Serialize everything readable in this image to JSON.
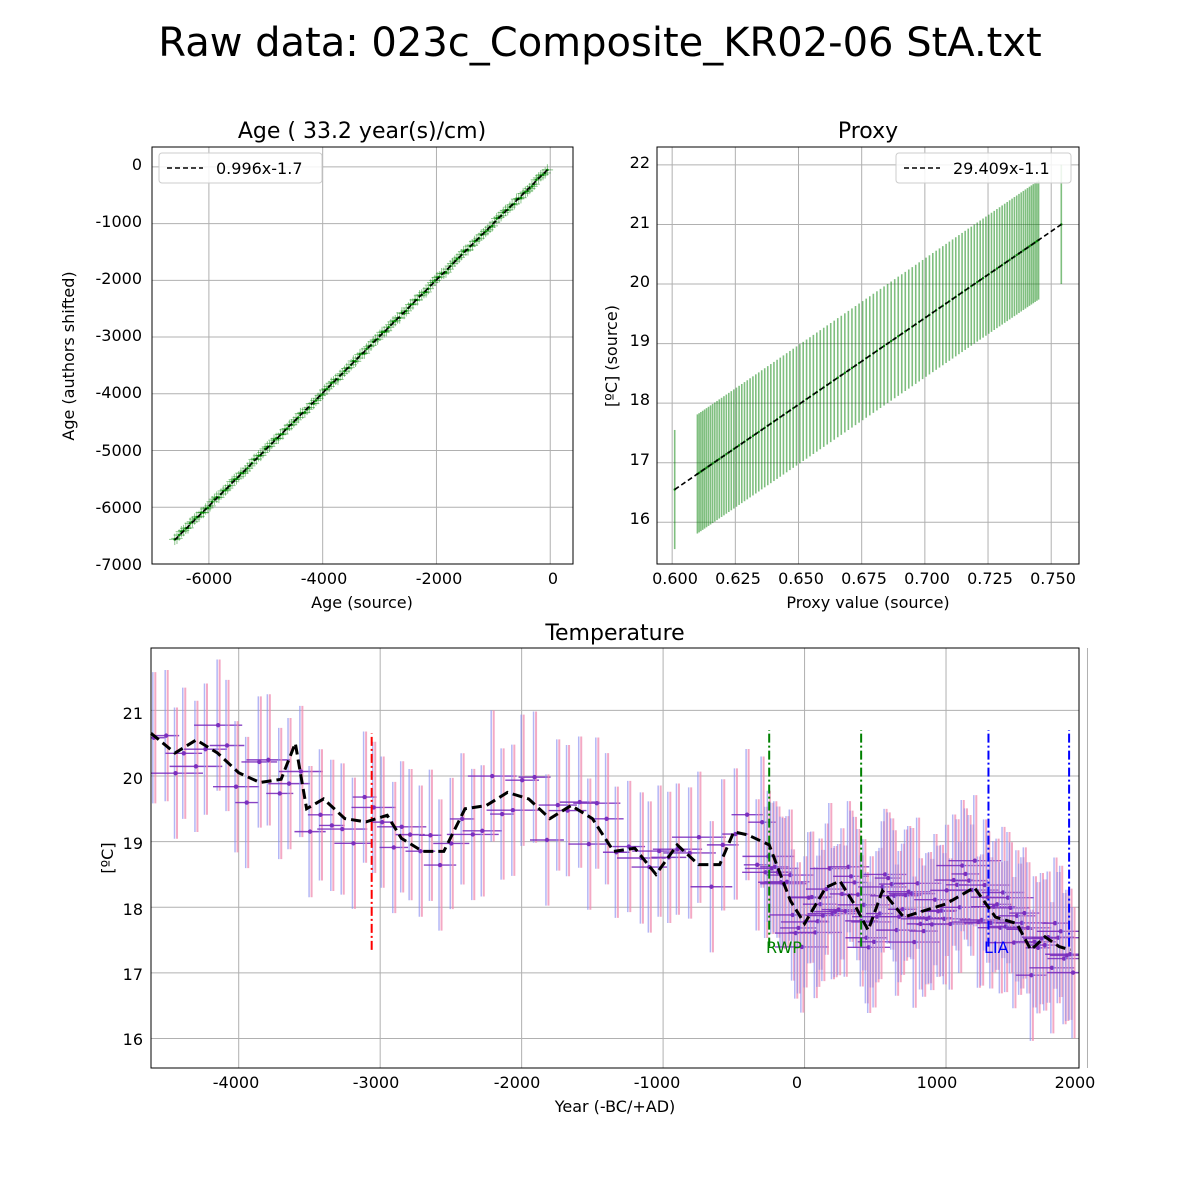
{
  "figure_title": "Raw data: 023c_Composite_KR02-06 StA.txt",
  "colors": {
    "green": "#008000",
    "grid": "#b0b0b0",
    "purple": "#7b2fbe",
    "pink": "#f08cb0",
    "blue_err": "#8a8ff0",
    "red": "#ff0000",
    "rwp": "#008000",
    "lia": "#0000ff",
    "fit": "#000000"
  },
  "chart_data": [
    {
      "type": "scatter",
      "title": "Age ( 33.2 year(s)/cm)",
      "xlabel": "Age (source)",
      "ylabel": "Age (authors shifted)",
      "xlim": [
        -7000,
        400
      ],
      "ylim": [
        -7000,
        350
      ],
      "xticks": [
        "-6000",
        "-4000",
        "-2000",
        "0"
      ],
      "yticks": [
        "0",
        "-1000",
        "-2000",
        "-3000",
        "-4000",
        "-5000",
        "-6000",
        "-7000"
      ],
      "legend": {
        "label": "0.996x-1.7",
        "placement": "top-left"
      },
      "fit": {
        "slope": 0.996,
        "intercept": -1.7
      },
      "x_range": [
        -6600,
        -50
      ],
      "n_points": 170,
      "error_bar": 100,
      "grid": true
    },
    {
      "type": "scatter",
      "title": "Proxy",
      "xlabel": "Proxy value (source)",
      "ylabel": "[ºC] (source)",
      "xlim": [
        0.594,
        0.761
      ],
      "ylim": [
        15.3,
        22.3
      ],
      "xticks": [
        "0.600",
        "0.625",
        "0.650",
        "0.675",
        "0.700",
        "0.725",
        "0.750"
      ],
      "yticks": [
        "16",
        "17",
        "18",
        "19",
        "20",
        "21",
        "22"
      ],
      "legend": {
        "label": "29.409x-1.1",
        "placement": "top-right"
      },
      "fit": {
        "slope": 29.409,
        "intercept": -1.1
      },
      "proxy_range": [
        0.601,
        0.754
      ],
      "n_points": 120,
      "error_bar": 1.0,
      "grid": true
    },
    {
      "type": "line",
      "title": "Temperature",
      "xlabel": "Year (-BC/+AD)",
      "ylabel": "[ºC]",
      "xlim": [
        -4620,
        1940
      ],
      "ylim": [
        15.55,
        21.95
      ],
      "xticks": [
        "-4000",
        "-3000",
        "-2000",
        "-1000",
        "0",
        "1000",
        "2000"
      ],
      "yticks": [
        "16",
        "17",
        "18",
        "19",
        "20",
        "21"
      ],
      "grid": true,
      "mean_line": {
        "x": [
          -4620,
          -4450,
          -4300,
          -4150,
          -4000,
          -3850,
          -3700,
          -3600,
          -3520,
          -3400,
          -3250,
          -3100,
          -2950,
          -2850,
          -2700,
          -2550,
          -2400,
          -2250,
          -2100,
          -1950,
          -1800,
          -1650,
          -1500,
          -1350,
          -1200,
          -1050,
          -900,
          -750,
          -600,
          -500,
          -400,
          -250,
          -100,
          0,
          150,
          250,
          350,
          450,
          550,
          700,
          850,
          1000,
          1200,
          1350,
          1500,
          1600,
          1700,
          1800,
          1880
        ],
        "y": [
          20.65,
          20.35,
          20.55,
          20.35,
          20.05,
          19.9,
          19.95,
          20.5,
          19.5,
          19.65,
          19.35,
          19.3,
          19.4,
          19.05,
          18.85,
          18.85,
          19.5,
          19.55,
          19.75,
          19.65,
          19.35,
          19.55,
          19.35,
          18.85,
          18.9,
          18.5,
          18.95,
          18.65,
          18.65,
          19.15,
          19.1,
          18.95,
          18.1,
          17.75,
          18.3,
          18.4,
          18.05,
          17.65,
          18.25,
          17.85,
          17.95,
          18.05,
          18.3,
          17.85,
          17.75,
          17.35,
          17.55,
          17.4,
          17.35
        ]
      },
      "markers": [
        {
          "x": -3060,
          "y_range": [
            17.35,
            20.65
          ],
          "color": "red",
          "label": ""
        },
        {
          "x": -250,
          "y_range": [
            17.4,
            20.7
          ],
          "color": "rwp",
          "label": "RWP"
        },
        {
          "x": 400,
          "y_range": [
            17.4,
            20.7
          ],
          "color": "rwp",
          "label": ""
        },
        {
          "x": 1300,
          "y_range": [
            17.4,
            20.7
          ],
          "color": "lia",
          "label": "LIA"
        },
        {
          "x": 1870,
          "y_range": [
            17.4,
            20.7
          ],
          "color": "lia",
          "label": ""
        }
      ],
      "error_bar": 1.0,
      "x_error": 130
    }
  ]
}
